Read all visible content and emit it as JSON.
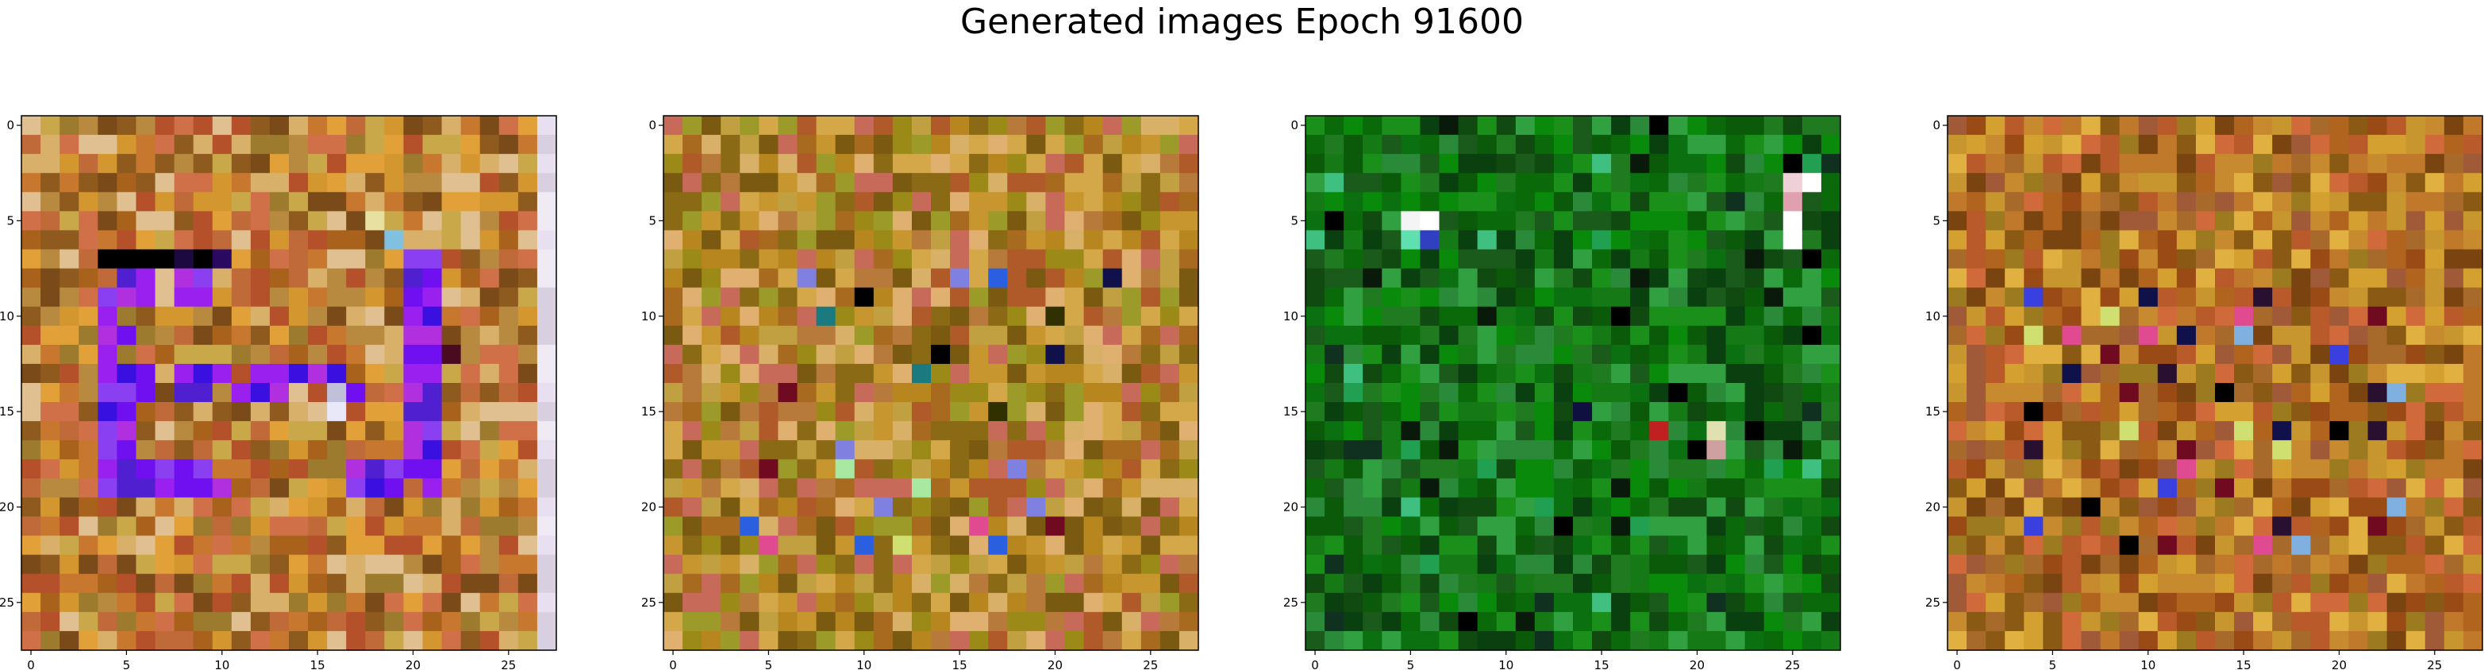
{
  "figure": {
    "title": "Generated images Epoch 91600"
  },
  "chart_data": {
    "type": "heatmap",
    "grid_size": 28,
    "x_ticks": [
      0,
      5,
      10,
      15,
      20,
      25
    ],
    "y_ticks": [
      0,
      5,
      10,
      15,
      20,
      25
    ],
    "xlim": [
      -0.5,
      27.5
    ],
    "ylim": [
      27.5,
      -0.5
    ],
    "grid": false,
    "panels": [
      {
        "palette": [
          "#c8782e",
          "#d4962e",
          "#a8621c",
          "#b88a40",
          "#c9a84a",
          "#8e5a1e",
          "#d8b06a",
          "#b4502a",
          "#e2a038",
          "#9c7a2e",
          "#c06a3a",
          "#e0c090",
          "#7a4a18",
          "#d07048"
        ],
        "motif": "purple-ring",
        "accent": [
          "#7010f0",
          "#3a10e0",
          "#9a20f0",
          "#b030e0",
          "#5020d0",
          "#8a40f0"
        ],
        "edge": [
          "#e8e0f0",
          "#f0eaf4",
          "#d8d0e0"
        ],
        "extras": [
          {
            "r": 7,
            "c": 4,
            "color": "#000000"
          },
          {
            "r": 7,
            "c": 5,
            "color": "#000000"
          },
          {
            "r": 7,
            "c": 6,
            "color": "#000000"
          },
          {
            "r": 7,
            "c": 7,
            "color": "#000000"
          },
          {
            "r": 7,
            "c": 8,
            "color": "#1a0a40"
          },
          {
            "r": 7,
            "c": 9,
            "color": "#000000"
          },
          {
            "r": 7,
            "c": 10,
            "color": "#2a0a60"
          },
          {
            "r": 15,
            "c": 16,
            "color": "#e8e8f8"
          },
          {
            "r": 14,
            "c": 16,
            "color": "#c0c0d8"
          },
          {
            "r": 5,
            "c": 18,
            "color": "#e8e0a0"
          },
          {
            "r": 6,
            "c": 19,
            "color": "#80c0e0"
          },
          {
            "r": 12,
            "c": 22,
            "color": "#4a0a20"
          }
        ]
      },
      {
        "palette": [
          "#b8861e",
          "#9c8a18",
          "#c8962e",
          "#a86a1e",
          "#c0a040",
          "#8a6a14",
          "#d4a848",
          "#b05a2a",
          "#9c9a28",
          "#d8b068",
          "#b87a3a",
          "#7a5a10",
          "#c86a5a",
          "#e0b070"
        ],
        "motif": "scatter",
        "accent": [
          "#000000",
          "#10104a",
          "#e8f0f0",
          "#f0f0f0",
          "#2a60e0",
          "#e04a90",
          "#a8e8a0",
          "#1a7a80",
          "#700a20",
          "#d0e070",
          "#8080e0",
          "#303000"
        ],
        "edge": [],
        "extras": []
      },
      {
        "palette": [
          "#0a6a0a",
          "#157a15",
          "#0a5a0a",
          "#207a20",
          "#0a8a0a",
          "#104a10",
          "#2a8a3a",
          "#0a7010",
          "#1a5a1a",
          "#30a040",
          "#0a4010",
          "#1a901a"
        ],
        "motif": "scatter-dark",
        "accent": [
          "#000000",
          "#0a1a0a",
          "#103020",
          "#40c080",
          "#20a050"
        ],
        "edge": [],
        "extras": [
          {
            "r": 5,
            "c": 5,
            "color": "#f4f4f4"
          },
          {
            "r": 5,
            "c": 6,
            "color": "#ffffff"
          },
          {
            "r": 6,
            "c": 5,
            "color": "#60e0b0"
          },
          {
            "r": 6,
            "c": 6,
            "color": "#3040c0"
          },
          {
            "r": 3,
            "c": 25,
            "color": "#f0d0d8"
          },
          {
            "r": 3,
            "c": 26,
            "color": "#ffffff"
          },
          {
            "r": 4,
            "c": 25,
            "color": "#e0a0b0"
          },
          {
            "r": 5,
            "c": 25,
            "color": "#ffffff"
          },
          {
            "r": 6,
            "c": 25,
            "color": "#ffffff"
          },
          {
            "r": 7,
            "c": 26,
            "color": "#000000"
          },
          {
            "r": 16,
            "c": 18,
            "color": "#c02020"
          },
          {
            "r": 16,
            "c": 21,
            "color": "#e0e0b0"
          },
          {
            "r": 17,
            "c": 21,
            "color": "#d0a0a0"
          },
          {
            "r": 17,
            "c": 20,
            "color": "#000000"
          },
          {
            "r": 15,
            "c": 14,
            "color": "#101040"
          }
        ]
      },
      {
        "palette": [
          "#b0641e",
          "#c88a2e",
          "#9a4a14",
          "#d4a030",
          "#a86a2a",
          "#c0782a",
          "#8a5a14",
          "#e0b040",
          "#b85a2a",
          "#9c7a20",
          "#d06a3a",
          "#7a4410",
          "#c8962e",
          "#a05a38"
        ],
        "motif": "scatter",
        "accent": [
          "#000000",
          "#10104a",
          "#e04a90",
          "#3a40e0",
          "#80b0e0",
          "#700a20",
          "#d0e070",
          "#2a1030"
        ],
        "edge": [],
        "extras": []
      }
    ]
  }
}
